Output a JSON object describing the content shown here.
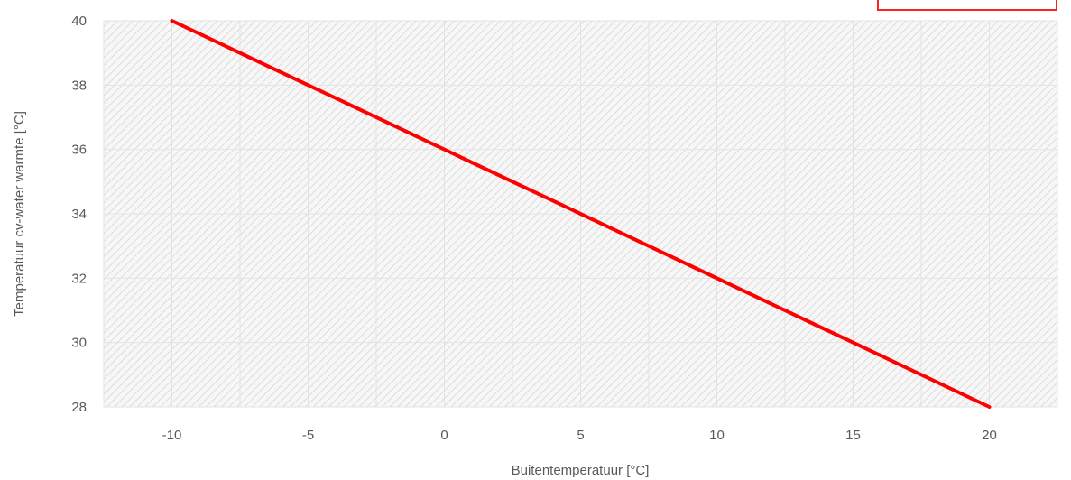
{
  "chart_data": {
    "type": "line",
    "title": "",
    "xlabel": "Buitentemperatuur [°C]",
    "ylabel": "Temperatuur cv-water warmte [°C]",
    "xlim": [
      -12.5,
      22.5
    ],
    "ylim": [
      28,
      40
    ],
    "xticks": [
      -10,
      -5,
      0,
      5,
      10,
      15,
      20
    ],
    "yticks": [
      28,
      30,
      32,
      34,
      36,
      38,
      40
    ],
    "xtick_labels": [
      "-10",
      "-5",
      "0",
      "5",
      "10",
      "15",
      "20"
    ],
    "ytick_labels": [
      "28",
      "30",
      "32",
      "34",
      "36",
      "38",
      "40"
    ],
    "grid": true,
    "background": "hatched",
    "series": [
      {
        "color": "#ff0000",
        "x": [
          -10,
          20
        ],
        "y": [
          40,
          28
        ]
      }
    ]
  }
}
